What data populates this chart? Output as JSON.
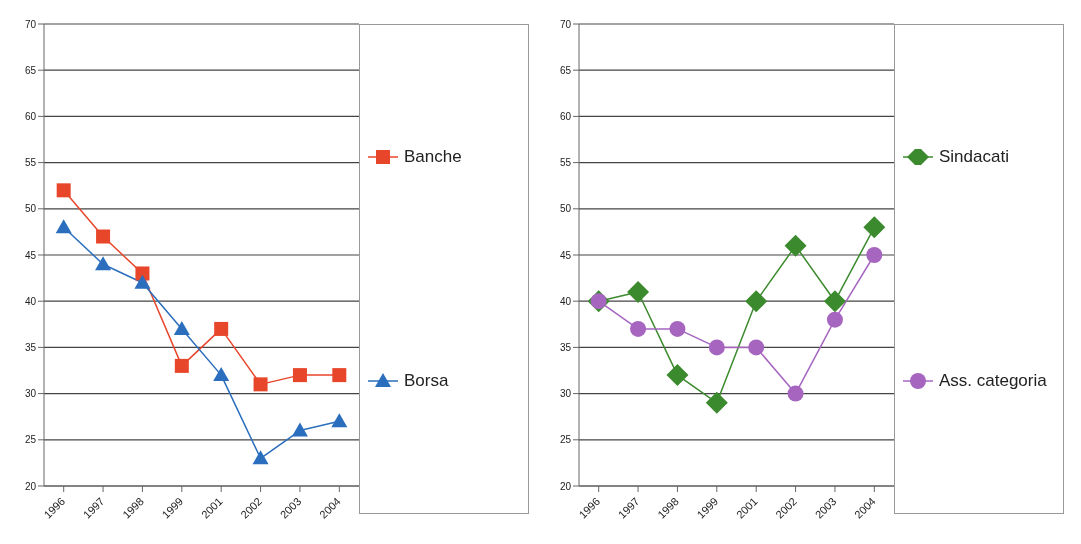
{
  "chart_data": [
    {
      "type": "line",
      "categories": [
        "1996",
        "1997",
        "1998",
        "1999",
        "2001",
        "2002",
        "2003",
        "2004"
      ],
      "series": [
        {
          "name": "Banche",
          "color": "#e8462a",
          "marker": "square",
          "values": [
            52,
            47,
            43,
            33,
            37,
            31,
            32,
            32
          ]
        },
        {
          "name": "Borsa",
          "color": "#2a6ebd",
          "marker": "triangle",
          "values": [
            48,
            44,
            42,
            37,
            32,
            23,
            26,
            27
          ]
        }
      ],
      "ylim": [
        20,
        70
      ],
      "yticks": [
        20,
        25,
        30,
        35,
        40,
        45,
        50,
        55,
        60,
        65,
        70
      ],
      "grid": "y",
      "legend": "right"
    },
    {
      "type": "line",
      "categories": [
        "1996",
        "1997",
        "1998",
        "1999",
        "2001",
        "2002",
        "2003",
        "2004"
      ],
      "series": [
        {
          "name": "Sindacati",
          "color": "#3c8a2e",
          "marker": "diamond",
          "values": [
            40,
            41,
            32,
            29,
            40,
            46,
            40,
            48
          ]
        },
        {
          "name": "Ass. categoria",
          "color": "#a666c0",
          "marker": "circle",
          "values": [
            40,
            37,
            37,
            35,
            35,
            30,
            38,
            45
          ]
        }
      ],
      "ylim": [
        20,
        70
      ],
      "yticks": [
        20,
        25,
        30,
        35,
        40,
        45,
        50,
        55,
        60,
        65,
        70
      ],
      "grid": "y",
      "legend": "right"
    }
  ]
}
